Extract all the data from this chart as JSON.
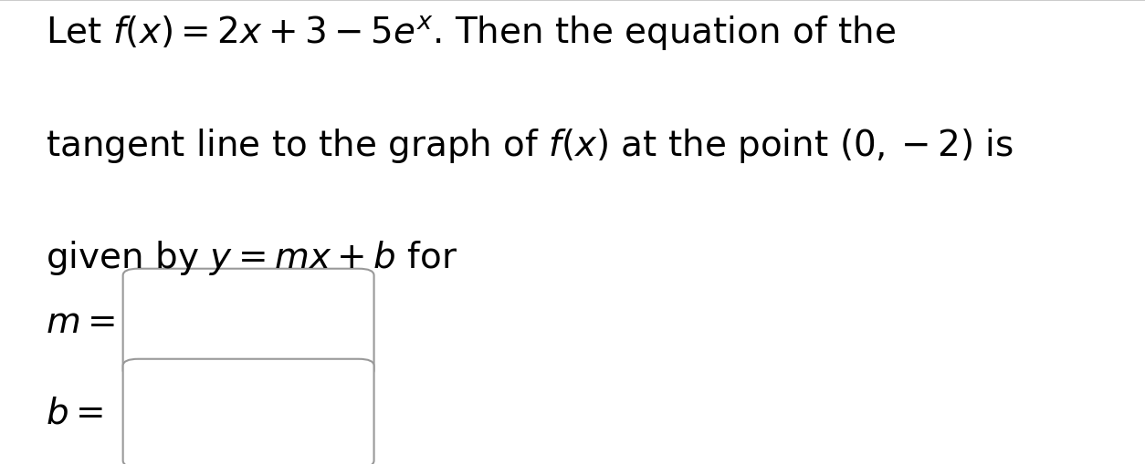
{
  "background_color": "#ffffff",
  "top_border_color": "#cccccc",
  "text_line1": "Let $f(x) = 2x + 3 - 5e^{x}$. Then the equation of the",
  "text_line2": "tangent line to the graph of $f(x)$ at the point $(0, -2)$ is",
  "text_line3": "given by $y = mx + b$ for",
  "label_m": "$m =$",
  "label_b": "$b =$",
  "text_color": "#000000",
  "box_border_color": "#999999",
  "text_fontsize": 28,
  "label_fontsize": 28
}
